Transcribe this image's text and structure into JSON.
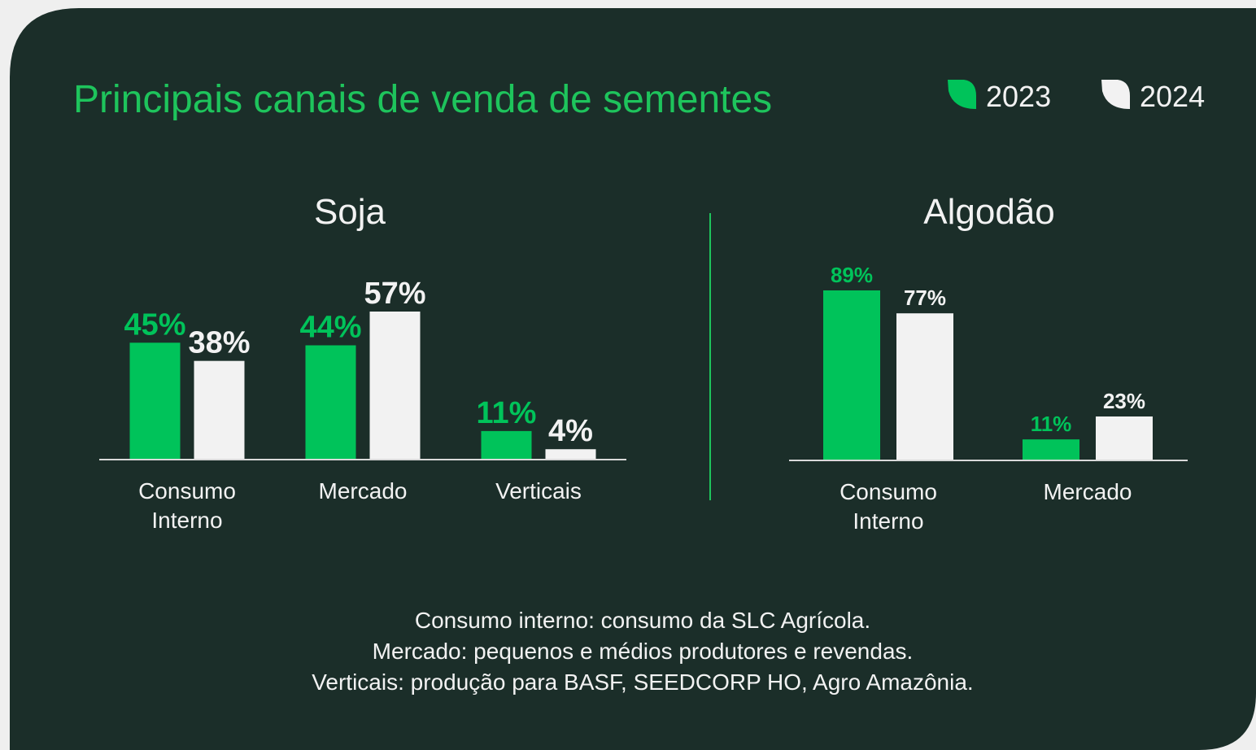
{
  "title": "Principais canais de venda de sementes",
  "chart_data": [
    {
      "type": "bar",
      "title": "Soja",
      "categories": [
        "Consumo Interno",
        "Mercado",
        "Verticais"
      ],
      "series": [
        {
          "name": "2023",
          "color": "#00c35a",
          "values": [
            45,
            44,
            11
          ],
          "value_labels": [
            "45%",
            "44%",
            "11%"
          ]
        },
        {
          "name": "2024",
          "color": "#f2f2f2",
          "values": [
            38,
            57,
            4
          ],
          "value_labels": [
            "38%",
            "57%",
            "4%"
          ]
        }
      ]
    },
    {
      "type": "bar",
      "title": "Algodão",
      "categories": [
        "Consumo Interno",
        "Mercado"
      ],
      "series": [
        {
          "color": "#00c35a",
          "values": [
            89,
            11
          ],
          "value_labels": [
            "89%",
            "11%"
          ]
        },
        {
          "color": "#f2f2f2",
          "values": [
            77,
            23
          ],
          "value_labels": [
            "77%",
            "23%"
          ]
        }
      ]
    }
  ],
  "notes": [
    "Consumo interno: consumo da SLC Agrícola.",
    "Mercado: pequenos e médios produtores e revendas.",
    "Verticais: produção para BASF, SEEDCORP HO, Agro Amazônia."
  ]
}
